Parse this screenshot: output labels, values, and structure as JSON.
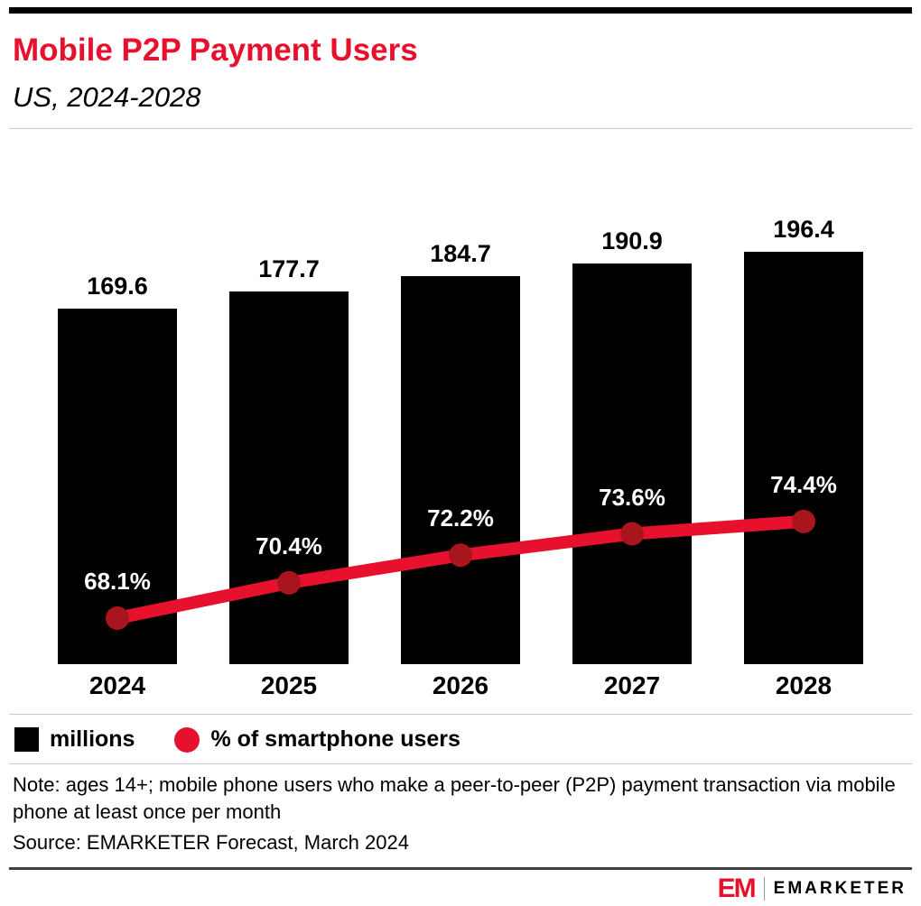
{
  "colors": {
    "accent_red": "#e8112d",
    "line_point_red": "#a8151d",
    "bar_black": "#000000"
  },
  "header": {
    "title": "Mobile P2P Payment Users",
    "subtitle": "US, 2024-2028"
  },
  "chart_data": {
    "type": "bar",
    "title": "Mobile P2P Payment Users",
    "subtitle": "US, 2024-2028",
    "categories": [
      "2024",
      "2025",
      "2026",
      "2027",
      "2028"
    ],
    "series": [
      {
        "name": "millions",
        "type": "bar",
        "color": "#000000",
        "values": [
          169.6,
          177.7,
          184.7,
          190.9,
          196.4
        ]
      },
      {
        "name": "% of smartphone users",
        "type": "line",
        "color": "#e8112d",
        "point_color": "#a8151d",
        "unit": "%",
        "values": [
          68.1,
          70.4,
          72.2,
          73.6,
          74.4
        ]
      }
    ],
    "value_labels_shown": true,
    "grid": false,
    "legend_position": "bottom",
    "ylim_bar": [
      0,
      196.4
    ]
  },
  "legend": {
    "items": [
      {
        "label": "millions",
        "swatch": "square",
        "color": "#000000"
      },
      {
        "label": "% of smartphone users",
        "swatch": "circle",
        "color": "#e8112d"
      }
    ]
  },
  "notes": {
    "note": "Note: ages 14+; mobile phone users who make a peer-to-peer (P2P) payment transaction via mobile phone at least once per month",
    "source": "Source: EMARKETER Forecast, March 2024"
  },
  "footer": {
    "logo_mark": "EM",
    "brand": "EMARKETER"
  }
}
